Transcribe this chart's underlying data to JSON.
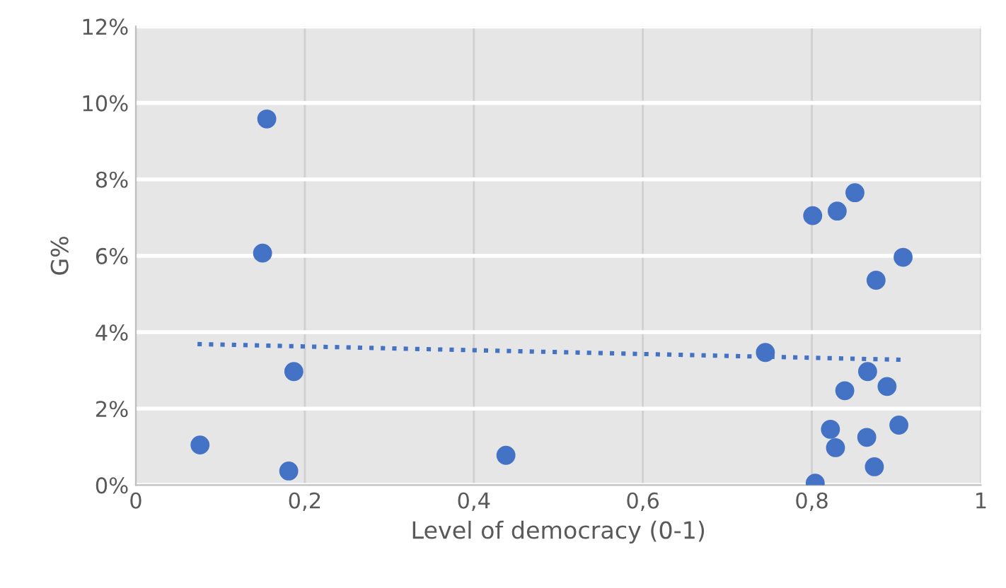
{
  "chart_data": {
    "type": "scatter",
    "xlabel": "Level of democracy (0-1)",
    "ylabel": "G%",
    "xlim": [
      0,
      1
    ],
    "ylim": [
      0,
      12
    ],
    "xticks": [
      0,
      {
        "value": 0.2,
        "label": "0,2"
      },
      {
        "value": 0.4,
        "label": "0,4"
      },
      {
        "value": 0.6,
        "label": "0,6"
      },
      {
        "value": 0.8,
        "label": "0,8"
      },
      1
    ],
    "yticks": [
      {
        "value": 0,
        "label": "0%"
      },
      {
        "value": 2,
        "label": "2%"
      },
      {
        "value": 4,
        "label": "4%"
      },
      {
        "value": 6,
        "label": "6%"
      },
      {
        "value": 8,
        "label": "8%"
      },
      {
        "value": 10,
        "label": "10%"
      },
      {
        "value": 12,
        "label": "12%"
      }
    ],
    "grid": true,
    "marker": "circle",
    "series": [
      {
        "color": "#4472c4",
        "x": [
          0.076,
          0.155,
          0.15,
          0.187,
          0.181,
          0.438,
          0.851,
          0.801,
          0.83,
          0.908,
          0.876,
          0.745,
          0.866,
          0.839,
          0.889,
          0.903,
          0.822,
          0.865,
          0.828,
          0.874,
          0.804
        ],
        "values": [
          1.05,
          9.58,
          6.07,
          2.97,
          0.37,
          0.78,
          7.65,
          7.05,
          7.17,
          5.96,
          5.36,
          3.47,
          2.97,
          2.47,
          2.58,
          1.57,
          1.46,
          1.25,
          0.98,
          0.48,
          0.05
        ]
      },
      {
        "type": "line",
        "color": "#4472c4",
        "line_style": "dotted",
        "marker": "none",
        "x": [
          0.073,
          0.905
        ],
        "values": [
          3.69,
          3.28
        ]
      }
    ]
  }
}
